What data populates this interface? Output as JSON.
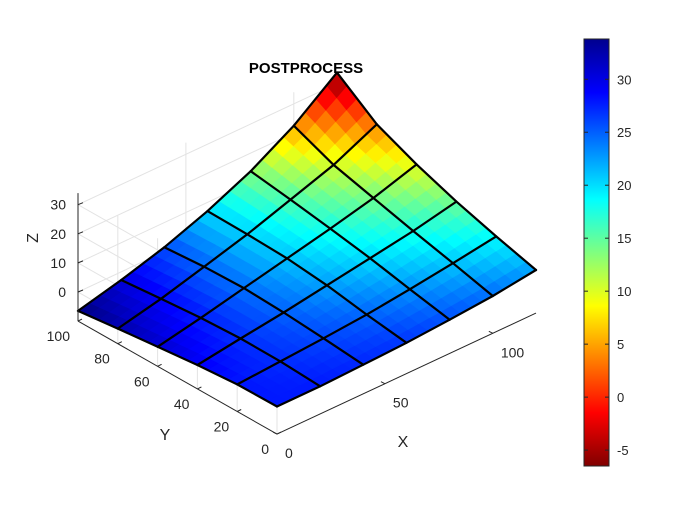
{
  "chart_data": {
    "type": "surface",
    "title": "POSTPROCESS",
    "xlabel": "X",
    "ylabel": "Y",
    "zlabel": "Z",
    "xlim": [
      0,
      120
    ],
    "ylim": [
      0,
      100
    ],
    "zlim": [
      -6.5,
      33.8
    ],
    "x_ticks": [
      "0",
      "50",
      "100"
    ],
    "y_ticks": [
      "0",
      "20",
      "40",
      "60",
      "80",
      "100"
    ],
    "z_ticks": [
      "0",
      "10",
      "20",
      "30"
    ],
    "mesh_x": [
      0,
      20,
      40,
      60,
      80,
      100,
      120
    ],
    "mesh_y": [
      0,
      20,
      40,
      60,
      80,
      100
    ],
    "z_values": [
      [
        -0.5,
        -0.5,
        0.0,
        0.6,
        1.6,
        2.8,
        4.8
      ],
      [
        -0.7,
        0.3,
        1.3,
        2.5,
        4.3,
        6.3,
        8.6
      ],
      [
        -1.8,
        0.4,
        2.4,
        4.8,
        7.2,
        9.6,
        12.8
      ],
      [
        -3.3,
        -0.3,
        3.0,
        6.3,
        9.6,
        13.2,
        17.8
      ],
      [
        -4.8,
        -1.5,
        2.6,
        6.8,
        11.8,
        16.8,
        23.8
      ],
      [
        -6.5,
        -2.8,
        1.5,
        7.0,
        13.8,
        22.5,
        33.8
      ]
    ],
    "colormap": "jet",
    "colorbar": {
      "min": -6.5,
      "max": 33.8,
      "ticks": [
        "-5",
        "0",
        "5",
        "10",
        "15",
        "20",
        "25",
        "30"
      ]
    },
    "grid": true
  }
}
